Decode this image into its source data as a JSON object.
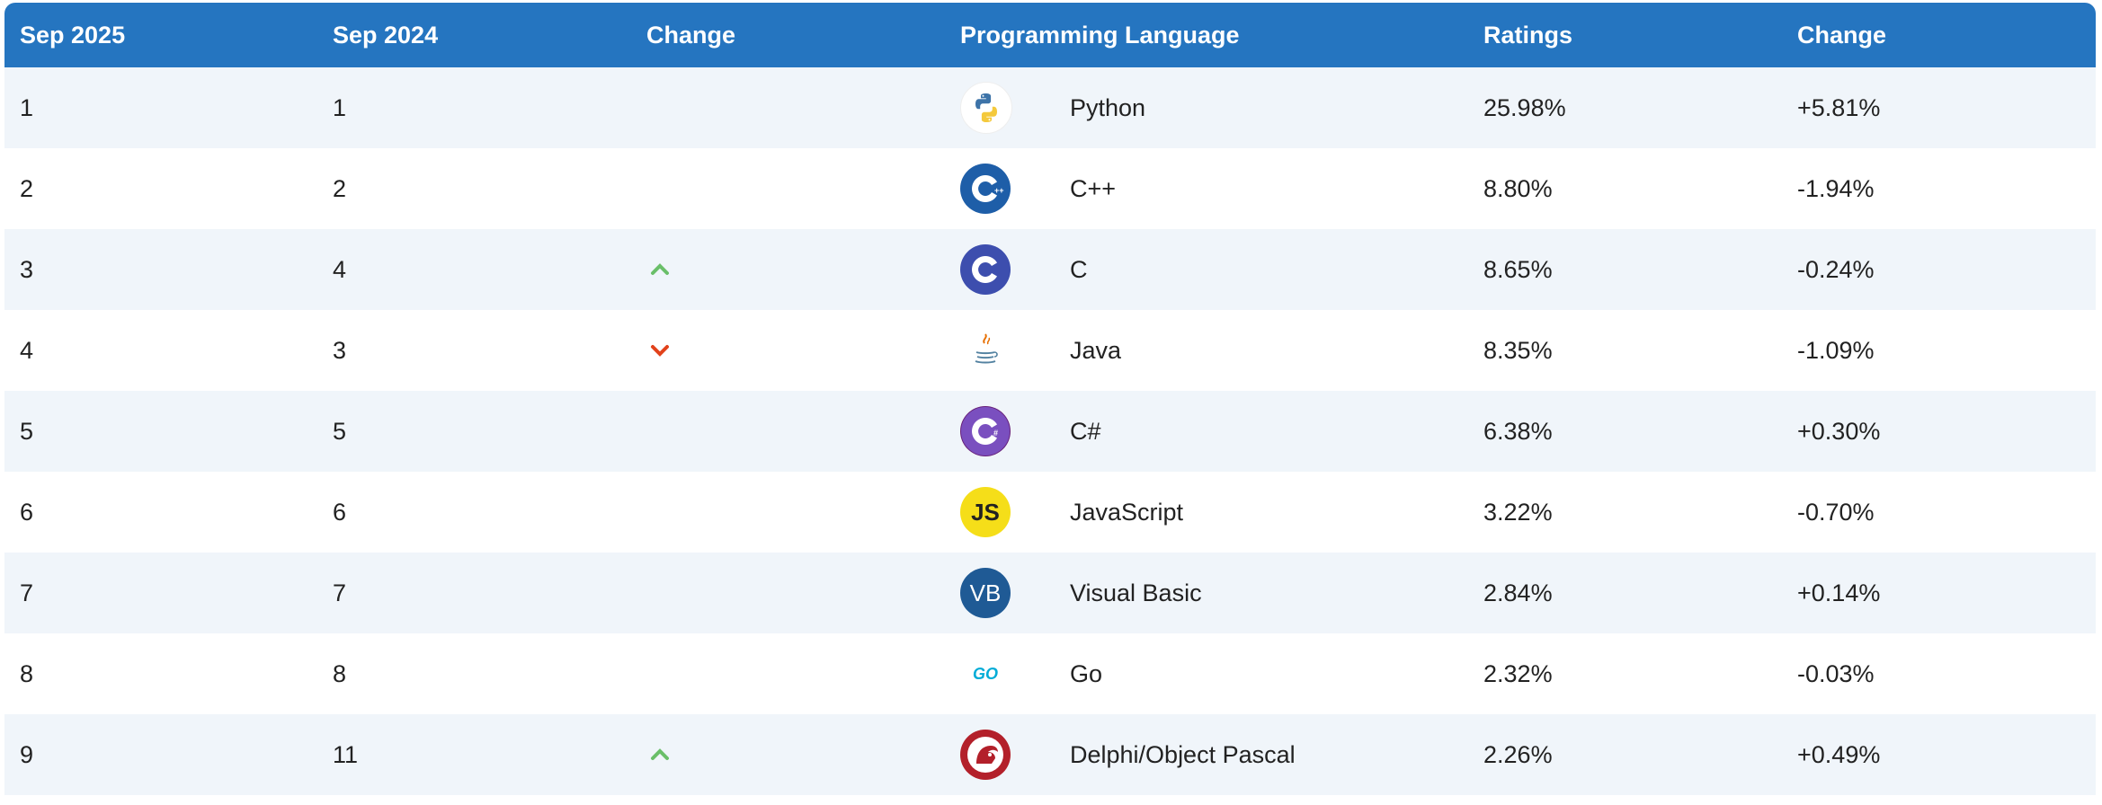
{
  "headers": {
    "current_month": "Sep 2025",
    "previous_month": "Sep 2024",
    "change": "Change",
    "language": "Programming Language",
    "ratings": "Ratings",
    "ratings_change": "Change"
  },
  "colors": {
    "header_bg": "#2575c0",
    "row_alt_bg": "#f0f5fa",
    "trend_up": "#6abf69",
    "trend_down": "#e2421b"
  },
  "rows": [
    {
      "rank": "1",
      "prev_rank": "1",
      "trend": "none",
      "icon": "python-logo-icon",
      "language": "Python",
      "rating": "25.98%",
      "change": "+5.81%"
    },
    {
      "rank": "2",
      "prev_rank": "2",
      "trend": "none",
      "icon": "cpp-logo-icon",
      "language": "C++",
      "rating": "8.80%",
      "change": "-1.94%"
    },
    {
      "rank": "3",
      "prev_rank": "4",
      "trend": "up",
      "icon": "c-logo-icon",
      "language": "C",
      "rating": "8.65%",
      "change": "-0.24%"
    },
    {
      "rank": "4",
      "prev_rank": "3",
      "trend": "down",
      "icon": "java-logo-icon",
      "language": "Java",
      "rating": "8.35%",
      "change": "-1.09%"
    },
    {
      "rank": "5",
      "prev_rank": "5",
      "trend": "none",
      "icon": "csharp-logo-icon",
      "language": "C#",
      "rating": "6.38%",
      "change": "+0.30%"
    },
    {
      "rank": "6",
      "prev_rank": "6",
      "trend": "none",
      "icon": "javascript-logo-icon",
      "language": "JavaScript",
      "rating": "3.22%",
      "change": "-0.70%"
    },
    {
      "rank": "7",
      "prev_rank": "7",
      "trend": "none",
      "icon": "visual-basic-logo-icon",
      "language": "Visual Basic",
      "rating": "2.84%",
      "change": "+0.14%"
    },
    {
      "rank": "8",
      "prev_rank": "8",
      "trend": "none",
      "icon": "go-logo-icon",
      "language": "Go",
      "rating": "2.32%",
      "change": "-0.03%"
    },
    {
      "rank": "9",
      "prev_rank": "11",
      "trend": "up",
      "icon": "delphi-logo-icon",
      "language": "Delphi/Object Pascal",
      "rating": "2.26%",
      "change": "+0.49%"
    }
  ],
  "logo_text": {
    "javascript": "JS",
    "visual_basic": "VB",
    "go": "GO"
  }
}
